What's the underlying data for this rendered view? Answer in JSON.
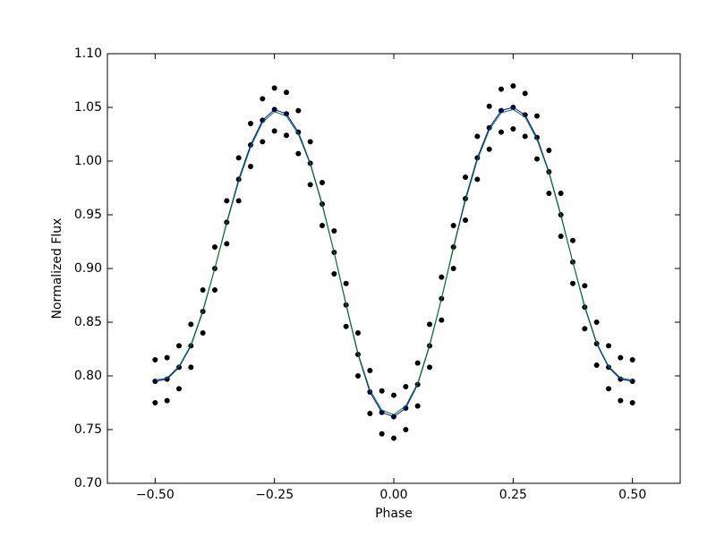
{
  "chart_data": {
    "type": "scatter",
    "xlabel": "Phase",
    "ylabel": "Normalized Flux",
    "xlim": [
      -0.6,
      0.6
    ],
    "ylim": [
      0.7,
      1.1
    ],
    "xticks": [
      {
        "value": -0.5,
        "label": "−0.50"
      },
      {
        "value": -0.25,
        "label": "−0.25"
      },
      {
        "value": 0,
        "label": "0.00"
      },
      {
        "value": 0.25,
        "label": "0.25"
      },
      {
        "value": 0.5,
        "label": "0.50"
      }
    ],
    "yticks": [
      {
        "value": 0.7,
        "label": "0.70"
      },
      {
        "value": 0.75,
        "label": "0.75"
      },
      {
        "value": 0.8,
        "label": "0.80"
      },
      {
        "value": 0.85,
        "label": "0.85"
      },
      {
        "value": 0.9,
        "label": "0.90"
      },
      {
        "value": 0.95,
        "label": "0.95"
      },
      {
        "value": 1.0,
        "label": "1.00"
      },
      {
        "value": 1.05,
        "label": "1.05"
      },
      {
        "value": 1.1,
        "label": "1.10"
      }
    ],
    "x": [
      -0.5,
      -0.475,
      -0.45,
      -0.425,
      -0.4,
      -0.375,
      -0.35,
      -0.325,
      -0.3,
      -0.275,
      -0.25,
      -0.225,
      -0.2,
      -0.175,
      -0.15,
      -0.125,
      -0.1,
      -0.075,
      -0.05,
      -0.025,
      0,
      0.025,
      0.05,
      0.075,
      0.1,
      0.125,
      0.15,
      0.175,
      0.2,
      0.225,
      0.25,
      0.275,
      0.3,
      0.325,
      0.35,
      0.375,
      0.4,
      0.425,
      0.45,
      0.475,
      0.5
    ],
    "points": [
      {
        "color": "#000000",
        "values": [
          0.815,
          0.817,
          0.828,
          0.848,
          0.88,
          0.92,
          0.963,
          1.003,
          1.035,
          1.058,
          1.068,
          1.064,
          1.047,
          1.018,
          0.98,
          0.935,
          0.886,
          0.84,
          0.805,
          0.786,
          0.782,
          0.79,
          0.812,
          0.848,
          0.892,
          0.94,
          0.985,
          1.023,
          1.051,
          1.067,
          1.07,
          1.063,
          1.042,
          1.01,
          0.97,
          0.926,
          0.884,
          0.85,
          0.828,
          0.817,
          0.815
        ]
      },
      {
        "color": "#000000",
        "values": [
          0.795,
          0.797,
          0.808,
          0.828,
          0.86,
          0.9,
          0.943,
          0.983,
          1.015,
          1.038,
          1.048,
          1.044,
          1.027,
          0.998,
          0.96,
          0.915,
          0.866,
          0.82,
          0.785,
          0.766,
          0.762,
          0.77,
          0.792,
          0.828,
          0.872,
          0.92,
          0.965,
          1.003,
          1.031,
          1.047,
          1.05,
          1.043,
          1.022,
          0.99,
          0.95,
          0.906,
          0.864,
          0.83,
          0.808,
          0.797,
          0.795
        ]
      },
      {
        "color": "#000000",
        "values": [
          0.775,
          0.777,
          0.788,
          0.808,
          0.84,
          0.88,
          0.923,
          0.963,
          0.995,
          1.018,
          1.028,
          1.024,
          1.007,
          0.978,
          0.94,
          0.895,
          0.846,
          0.8,
          0.765,
          0.746,
          0.742,
          0.75,
          0.772,
          0.808,
          0.852,
          0.9,
          0.945,
          0.983,
          1.011,
          1.027,
          1.03,
          1.023,
          1.002,
          0.97,
          0.93,
          0.886,
          0.844,
          0.81,
          0.788,
          0.777,
          0.775
        ]
      }
    ],
    "lines": [
      {
        "color": "#0000ff",
        "values": [
          0.795,
          0.797,
          0.808,
          0.828,
          0.86,
          0.9,
          0.943,
          0.983,
          1.015,
          1.038,
          1.048,
          1.044,
          1.027,
          0.998,
          0.96,
          0.915,
          0.866,
          0.82,
          0.785,
          0.766,
          0.762,
          0.77,
          0.792,
          0.828,
          0.872,
          0.92,
          0.965,
          1.003,
          1.031,
          1.047,
          1.05,
          1.043,
          1.022,
          0.99,
          0.95,
          0.906,
          0.864,
          0.83,
          0.808,
          0.797,
          0.795
        ]
      },
      {
        "color": "#008000",
        "values": [
          0.796,
          0.798,
          0.809,
          0.829,
          0.861,
          0.9,
          0.942,
          0.981,
          1.013,
          1.036,
          1.046,
          1.042,
          1.025,
          0.997,
          0.959,
          0.915,
          0.867,
          0.821,
          0.787,
          0.768,
          0.764,
          0.772,
          0.793,
          0.829,
          0.872,
          0.919,
          0.963,
          1.001,
          1.029,
          1.045,
          1.048,
          1.041,
          1.02,
          0.989,
          0.949,
          0.906,
          0.865,
          0.831,
          0.809,
          0.798,
          0.796
        ]
      }
    ]
  }
}
